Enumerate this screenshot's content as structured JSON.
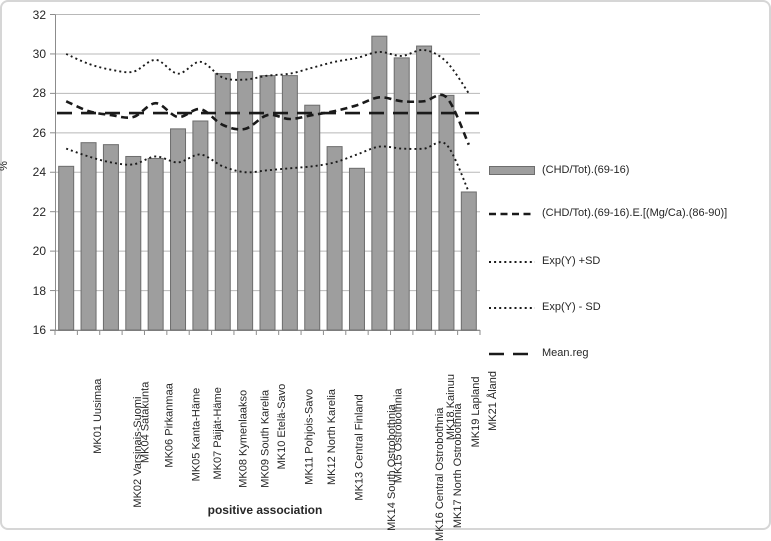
{
  "chart_data": {
    "type": "bar",
    "title": "",
    "xlabel": "positive association",
    "ylabel": "%",
    "ylim": [
      16,
      32
    ],
    "ytick_step": 2,
    "ytick_labels": [
      "32",
      "30",
      "28",
      "26",
      "24",
      "22",
      "20",
      "18",
      "16"
    ],
    "grid": "horizontal",
    "legend_position": "right",
    "categories": [
      "MK01 Uusimaa",
      "MK02 Varsinais-Suomi",
      "MK04 Satakunta",
      "MK06 Pirkanmaa",
      "MK05 Kanta-Häme",
      "MK07 Päijät-Häme",
      "MK08 Kymenlaakso",
      "MK09 South Karelia",
      "MK10 Etelä-Savo",
      "MK11 Pohjois-Savo",
      "MK12 North Karelia",
      "MK13 Central Finland",
      "MK14 South Ostrobothnia",
      "MK15 Ostrobothnia",
      "MK16 Central Ostrobothnia",
      "MK17 North Ostrobothnia",
      "MK18 Kainuu",
      "MK19 Lapland",
      "MK21 Åland"
    ],
    "series": [
      {
        "name": "(CHD/Tot).(69-16)",
        "kind": "bar",
        "values": [
          24.3,
          25.5,
          25.4,
          24.8,
          24.7,
          26.2,
          26.6,
          29.0,
          29.1,
          28.9,
          28.9,
          27.4,
          25.3,
          24.2,
          30.9,
          29.8,
          30.4,
          27.9,
          23.0
        ]
      },
      {
        "name": "(CHD/Tot).(69-16).E.[(Mg/Ca).(86-90)]",
        "kind": "dashed-line",
        "values": [
          27.6,
          27.1,
          26.9,
          26.8,
          27.5,
          26.8,
          27.2,
          26.4,
          26.2,
          26.9,
          26.7,
          26.9,
          27.1,
          27.4,
          27.8,
          27.6,
          27.6,
          27.8,
          25.4
        ]
      },
      {
        "name": "Exp(Y) +SD",
        "kind": "dotted-line",
        "values": [
          30.0,
          29.5,
          29.2,
          29.1,
          29.7,
          29.0,
          29.6,
          28.8,
          28.7,
          28.9,
          29.0,
          29.3,
          29.6,
          29.8,
          30.1,
          29.9,
          30.2,
          29.6,
          28.0
        ]
      },
      {
        "name": "Exp(Y) - SD",
        "kind": "dotted-line",
        "values": [
          25.2,
          24.8,
          24.5,
          24.4,
          24.8,
          24.5,
          24.9,
          24.3,
          24.0,
          24.1,
          24.2,
          24.3,
          24.5,
          24.9,
          25.3,
          25.2,
          25.2,
          25.4,
          23.0
        ]
      },
      {
        "name": "Mean.reg",
        "kind": "long-dash-line",
        "constant": 27.0
      }
    ]
  },
  "colors": {
    "bar_fill": "#9e9e9e",
    "bar_border": "#6d6d6d",
    "line": "#1a1a1a",
    "gridline": "#b8b8b8",
    "axis": "#8c8c8c",
    "text": "#262626"
  }
}
